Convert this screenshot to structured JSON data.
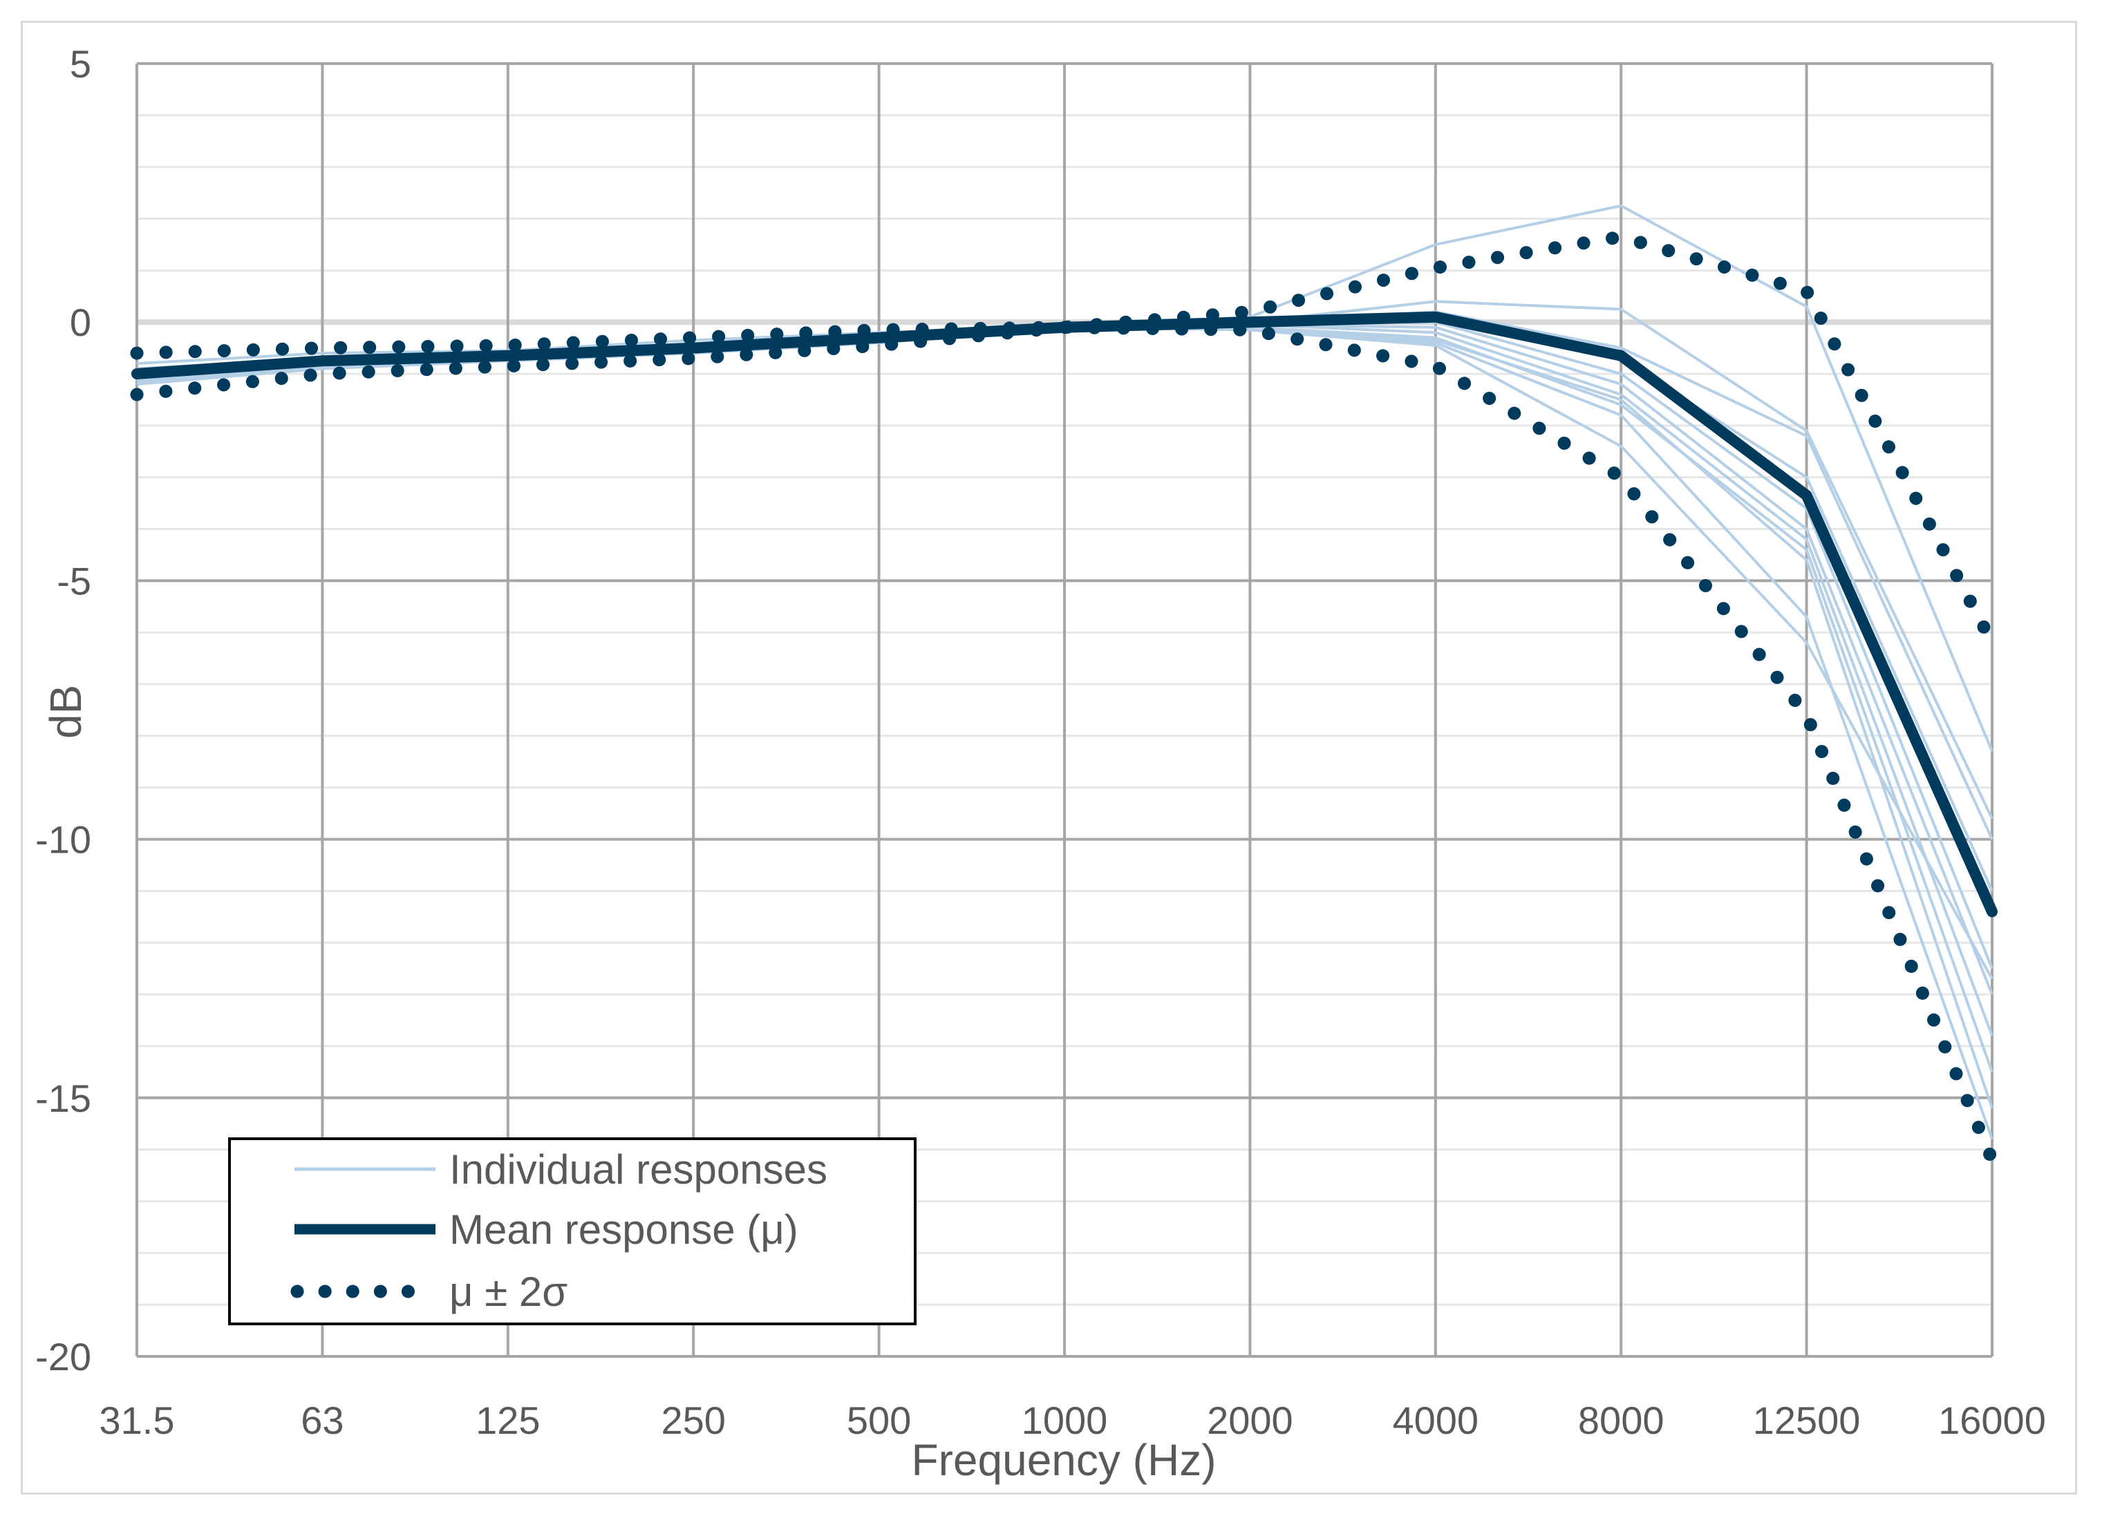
{
  "chart_data": {
    "type": "line",
    "title": "",
    "xlabel": "Frequency (Hz)",
    "ylabel": "dB",
    "categories": [
      "31.5",
      "63",
      "125",
      "250",
      "500",
      "1000",
      "2000",
      "4000",
      "8000",
      "12500",
      "16000"
    ],
    "ylim": [
      -20,
      5
    ],
    "yticks": [
      "5",
      "0",
      "-5",
      "-10",
      "-15",
      "-20"
    ],
    "grid": true,
    "legend": {
      "placement": "bottom-left",
      "entries": [
        "Individual responses",
        "Mean response (μ)",
        "μ ± 2σ"
      ]
    },
    "series": [
      {
        "name": "Mean response (μ)",
        "style": "solid-thick",
        "values": [
          -1.0,
          -0.75,
          -0.65,
          -0.5,
          -0.3,
          -0.1,
          0.0,
          0.1,
          -0.65,
          -3.35,
          -11.4
        ]
      },
      {
        "name": "μ + 2σ",
        "style": "dotted",
        "values": [
          -0.6,
          -0.5,
          -0.45,
          -0.3,
          -0.15,
          -0.1,
          0.2,
          1.05,
          1.65,
          0.6,
          -6.2
        ]
      },
      {
        "name": "μ - 2σ",
        "style": "dotted",
        "values": [
          -1.4,
          -1.0,
          -0.85,
          -0.7,
          -0.45,
          -0.1,
          -0.15,
          -0.85,
          -3.0,
          -7.6,
          -16.2
        ]
      }
    ],
    "individual_responses": [
      [
        -0.8,
        -0.6,
        -0.55,
        -0.35,
        -0.2,
        -0.1,
        0.1,
        1.5,
        2.25,
        0.3,
        -8.3
      ],
      [
        -1.0,
        -0.75,
        -0.65,
        -0.5,
        -0.3,
        -0.1,
        0.0,
        0.4,
        0.25,
        -2.1,
        -9.6
      ],
      [
        -1.1,
        -0.8,
        -0.7,
        -0.55,
        -0.35,
        -0.1,
        0.0,
        0.2,
        -0.5,
        -2.2,
        -10.0
      ],
      [
        -0.9,
        -0.7,
        -0.6,
        -0.45,
        -0.3,
        -0.1,
        0.0,
        0.1,
        -0.7,
        -3.0,
        -11.0
      ],
      [
        -1.2,
        -0.85,
        -0.7,
        -0.55,
        -0.35,
        -0.1,
        -0.05,
        0.0,
        -1.0,
        -3.6,
        -12.5
      ],
      [
        -1.0,
        -0.8,
        -0.7,
        -0.5,
        -0.3,
        -0.1,
        -0.05,
        -0.1,
        -1.2,
        -4.0,
        -13.0
      ],
      [
        -1.1,
        -0.8,
        -0.65,
        -0.5,
        -0.3,
        -0.1,
        -0.05,
        -0.2,
        -1.4,
        -4.2,
        -13.8
      ],
      [
        -1.2,
        -0.9,
        -0.75,
        -0.6,
        -0.4,
        -0.1,
        -0.1,
        -0.3,
        -1.6,
        -4.4,
        -14.5
      ],
      [
        -0.95,
        -0.75,
        -0.65,
        -0.5,
        -0.3,
        -0.1,
        -0.1,
        -0.35,
        -1.5,
        -4.6,
        -15.2
      ],
      [
        -1.05,
        -0.8,
        -0.7,
        -0.55,
        -0.35,
        -0.1,
        -0.1,
        -0.4,
        -1.8,
        -5.7,
        -15.8
      ],
      [
        -1.15,
        -0.85,
        -0.75,
        -0.6,
        -0.4,
        -0.1,
        -0.15,
        -0.45,
        -2.4,
        -6.2,
        -12.7
      ]
    ],
    "colors": {
      "mean": "#003a5d",
      "bounds": "#003a5d",
      "individual": "#b4cfe6",
      "grid_major": "#a6a6a6",
      "grid_minor": "#e6e6e6",
      "zero_line": "#d9d9d9"
    }
  }
}
